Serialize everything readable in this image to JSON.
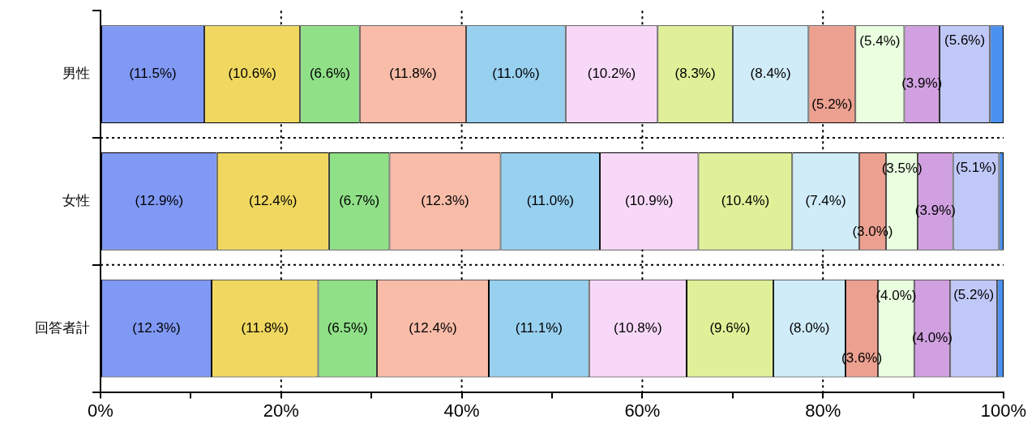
{
  "chart_data": {
    "type": "bar",
    "orientation": "horizontal",
    "stacked": true,
    "categories": [
      "男性",
      "女性",
      "回答者計"
    ],
    "xlim": [
      0,
      100
    ],
    "xticks": [
      {
        "value": 0,
        "label": "0%"
      },
      {
        "value": 10,
        "label": null
      },
      {
        "value": 20,
        "label": "20%"
      },
      {
        "value": 30,
        "label": null
      },
      {
        "value": 40,
        "label": "40%"
      },
      {
        "value": 50,
        "label": null
      },
      {
        "value": 60,
        "label": "60%"
      },
      {
        "value": 70,
        "label": null
      },
      {
        "value": 80,
        "label": "80%"
      },
      {
        "value": 90,
        "label": null
      },
      {
        "value": 100,
        "label": "100%"
      }
    ],
    "grid": true,
    "legend": false,
    "series": [
      {
        "color": "#8099f5",
        "values": [
          11.5,
          12.9,
          12.3
        ],
        "value_labels": [
          "(11.5%)",
          "(12.9%)",
          "(12.3%)"
        ]
      },
      {
        "color": "#f0d860",
        "values": [
          10.6,
          12.4,
          11.8
        ],
        "value_labels": [
          "(10.6%)",
          "(12.4%)",
          "(11.8%)"
        ]
      },
      {
        "color": "#90e088",
        "values": [
          6.6,
          6.7,
          6.5
        ],
        "value_labels": [
          "(6.6%)",
          "(6.7%)",
          "(6.5%)"
        ]
      },
      {
        "color": "#f8bca8",
        "values": [
          11.8,
          12.3,
          12.4
        ],
        "value_labels": [
          "(11.8%)",
          "(12.3%)",
          "(12.4%)"
        ]
      },
      {
        "color": "#98d0f0",
        "values": [
          11.0,
          11.0,
          11.1
        ],
        "value_labels": [
          "(11.0%)",
          "(11.0%)",
          "(11.1%)"
        ]
      },
      {
        "color": "#f8d8f8",
        "values": [
          10.2,
          10.9,
          10.8
        ],
        "value_labels": [
          "(10.2%)",
          "(10.9%)",
          "(10.8%)"
        ]
      },
      {
        "color": "#e0f098",
        "values": [
          8.3,
          10.4,
          9.6
        ],
        "value_labels": [
          "(8.3%)",
          "(10.4%)",
          "(9.6%)"
        ]
      },
      {
        "color": "#d0ecf8",
        "values": [
          8.4,
          7.4,
          8.0
        ],
        "value_labels": [
          "(8.4%)",
          "(7.4%)",
          "(8.0%)"
        ]
      },
      {
        "color": "#eca090",
        "values": [
          5.2,
          3.0,
          3.6
        ],
        "value_labels": [
          "(5.2%)",
          "(3.0%)",
          "(3.6%)"
        ]
      },
      {
        "color": "#eaffe0",
        "values": [
          5.4,
          3.5,
          4.0
        ],
        "value_labels": [
          "(5.4%)",
          "(3.5%)",
          "(4.0%)"
        ]
      },
      {
        "color": "#d0a0e0",
        "values": [
          3.9,
          3.9,
          4.0
        ],
        "value_labels": [
          "(3.9%)",
          "(3.9%)",
          "(4.0%)"
        ]
      },
      {
        "color": "#c0c8f8",
        "values": [
          5.6,
          5.1,
          5.2
        ],
        "value_labels": [
          "(5.6%)",
          "(5.1%)",
          "(5.2%)"
        ]
      },
      {
        "color": "#4a90f0",
        "values": [
          1.5,
          0.5,
          0.7
        ],
        "value_labels": [
          null,
          null,
          null
        ]
      }
    ]
  }
}
